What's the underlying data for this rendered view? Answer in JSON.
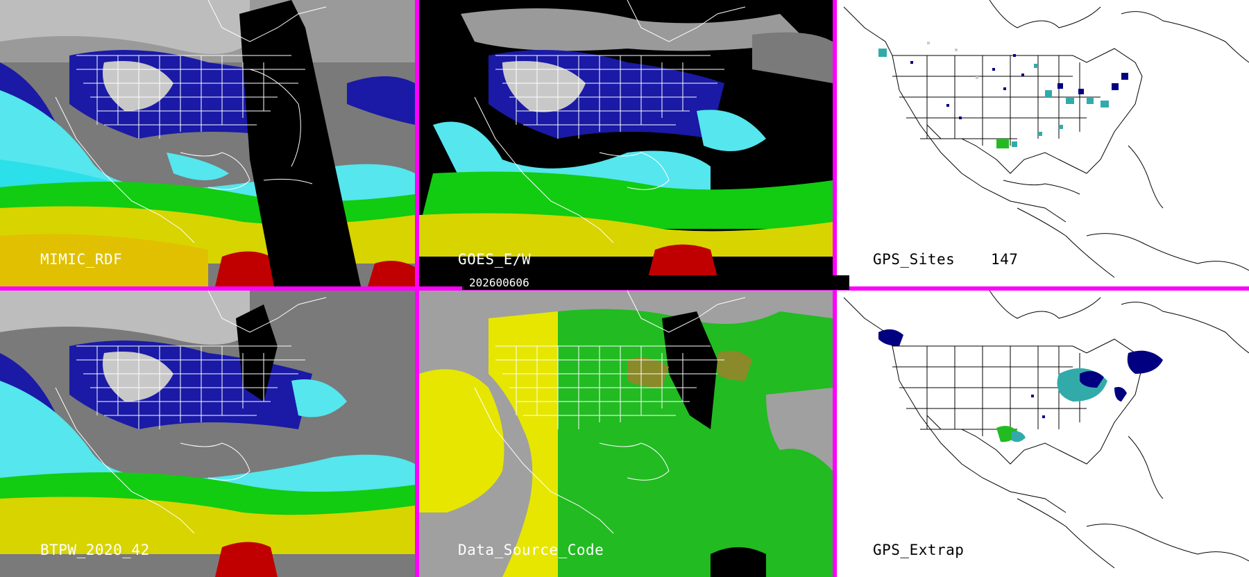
{
  "date_stamp": "202600606",
  "panels": [
    {
      "label": "MIMIC_RDF"
    },
    {
      "label": "GOES_E/W"
    },
    {
      "label": "GPS_Sites",
      "count": "147"
    },
    {
      "label": "BTPW_2020_42"
    },
    {
      "label": "Data_Source_Code"
    },
    {
      "label": "GPS_Extrap"
    }
  ],
  "colors": {
    "divider": "#ff00ff",
    "ocean_dark": "#000066",
    "pw_low": "#1a1aa6",
    "pw_mid": "#55e6ee",
    "pw_high": "#11cc11",
    "pw_very_high": "#d8d400",
    "pw_extreme": "#c00000",
    "land_gray": "#a0a0a0",
    "no_data": "#000000",
    "source_yellow": "#e6e600",
    "source_green": "#22bb22",
    "gps_cyan": "#33aaaa",
    "gps_navy": "#000080"
  }
}
